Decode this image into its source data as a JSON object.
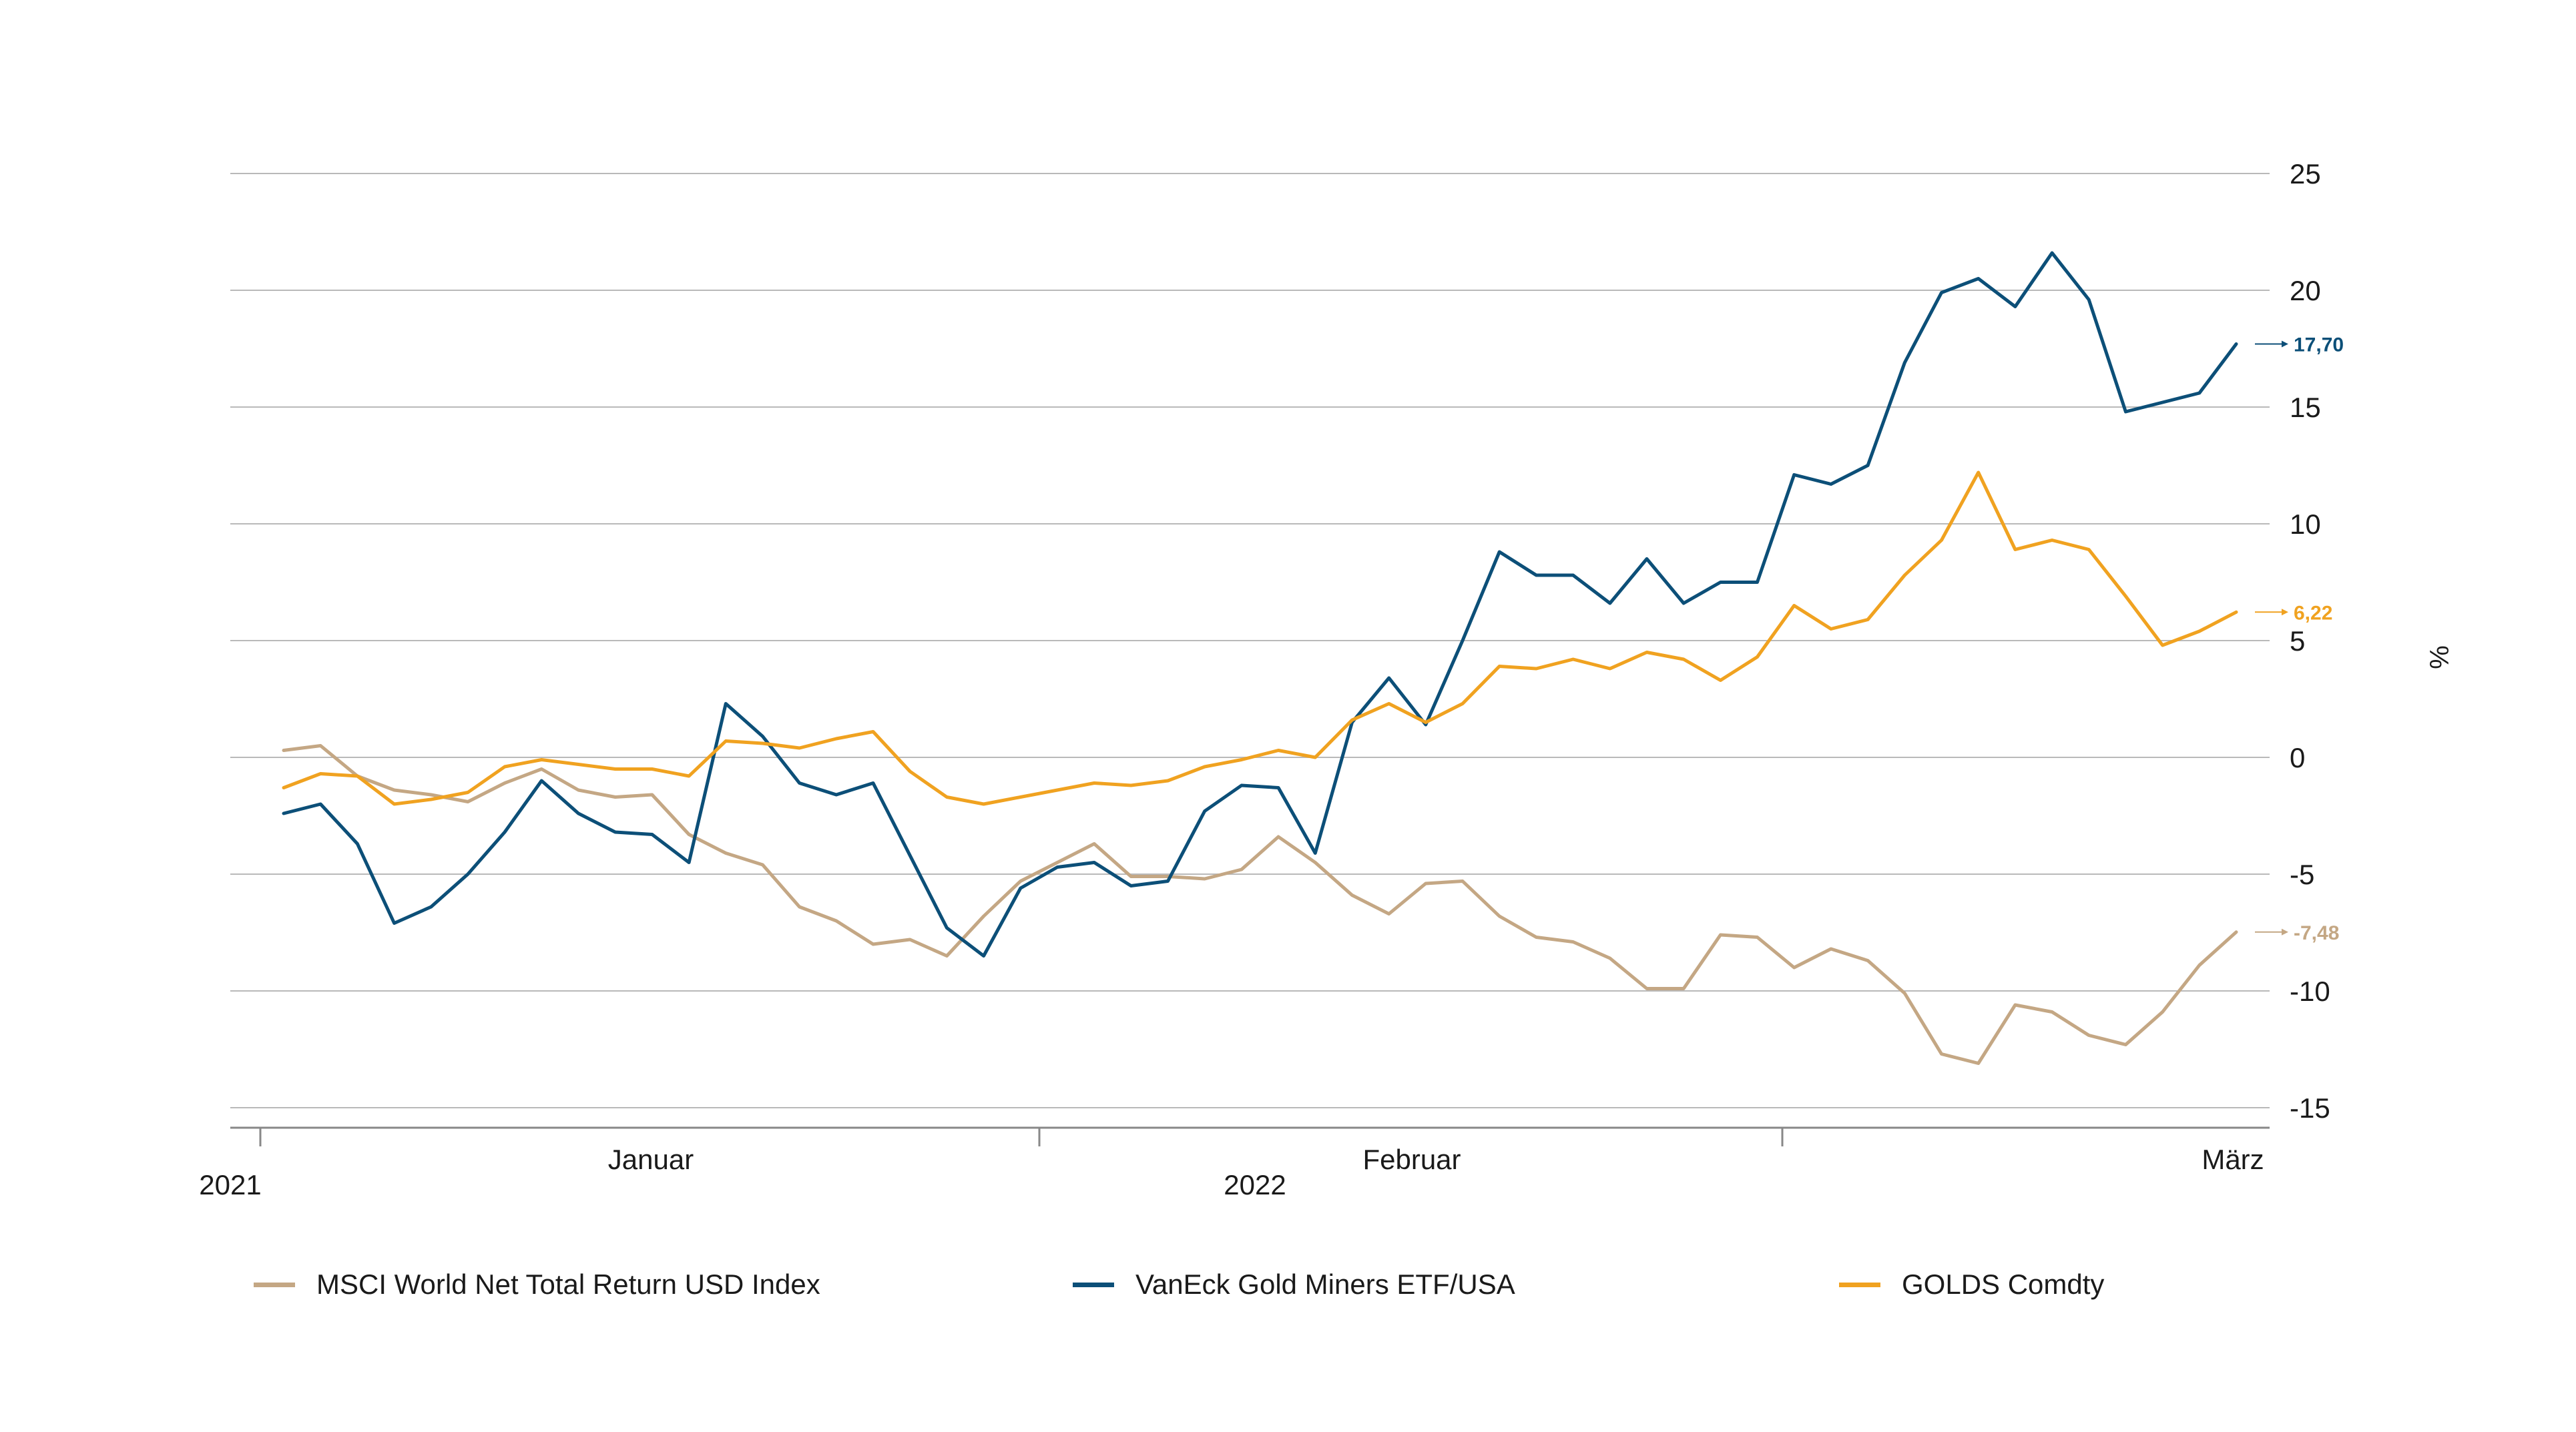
{
  "chart_data": {
    "type": "line",
    "ylabel": "%",
    "ylim": [
      -16,
      25
    ],
    "yticks": [
      25,
      20,
      15,
      10,
      5,
      0,
      -5,
      -10,
      -15
    ],
    "xticks": [
      {
        "label": "2021"
      },
      {
        "label": "Januar"
      },
      {
        "label": "2022"
      },
      {
        "label": "Februar"
      },
      {
        "label": "März"
      }
    ],
    "grid": true,
    "legend_position": "bottom",
    "n_points": 54,
    "series": [
      {
        "name": "MSCI World Net Total Return USD Index",
        "color": "#c4a784",
        "end_label": "-7,48",
        "values": [
          0.3,
          0.5,
          -0.8,
          -1.4,
          -1.6,
          -1.9,
          -1.1,
          -0.5,
          -1.4,
          -1.7,
          -1.6,
          -3.3,
          -4.1,
          -4.6,
          -6.4,
          -7.0,
          -8.0,
          -7.8,
          -8.5,
          -6.8,
          -5.3,
          -4.5,
          -3.7,
          -5.1,
          -5.1,
          -5.2,
          -4.8,
          -3.4,
          -4.5,
          -5.9,
          -6.7,
          -5.4,
          -5.3,
          -6.8,
          -7.7,
          -7.9,
          -8.6,
          -9.9,
          -9.9,
          -7.6,
          -7.7,
          -9.0,
          -8.2,
          -8.7,
          -10.1,
          -12.7,
          -13.1,
          -10.6,
          -10.9,
          -11.9,
          -12.3,
          -10.9,
          -8.9,
          -7.48
        ]
      },
      {
        "name": "VanEck Gold Miners ETF/USA",
        "color": "#0c4f78",
        "end_label": "17,70",
        "values": [
          -2.4,
          -2.0,
          -3.7,
          -7.1,
          -6.4,
          -5.0,
          -3.2,
          -1.0,
          -2.4,
          -3.2,
          -3.3,
          -4.5,
          2.3,
          0.9,
          -1.1,
          -1.6,
          -1.1,
          -4.2,
          -7.3,
          -8.5,
          -5.6,
          -4.7,
          -4.5,
          -5.5,
          -5.3,
          -2.3,
          -1.2,
          -1.3,
          -4.1,
          1.5,
          3.4,
          1.4,
          5.0,
          8.8,
          7.8,
          7.8,
          6.6,
          8.5,
          6.6,
          7.5,
          7.5,
          12.1,
          11.7,
          12.5,
          16.9,
          19.9,
          20.5,
          19.3,
          21.6,
          19.6,
          14.8,
          15.2,
          15.6,
          17.7
        ]
      },
      {
        "name": "GOLDS Comdty",
        "color": "#f0a220",
        "end_label": "6,22",
        "values": [
          -1.3,
          -0.7,
          -0.8,
          -2.0,
          -1.8,
          -1.5,
          -0.4,
          -0.1,
          -0.3,
          -0.5,
          -0.5,
          -0.8,
          0.7,
          0.6,
          0.4,
          0.8,
          1.1,
          -0.6,
          -1.7,
          -2.0,
          -1.7,
          -1.4,
          -1.1,
          -1.2,
          -1.0,
          -0.4,
          -0.1,
          0.3,
          0.0,
          1.6,
          2.3,
          1.5,
          2.3,
          3.9,
          3.8,
          4.2,
          3.8,
          4.5,
          4.2,
          3.3,
          4.3,
          6.5,
          5.5,
          5.9,
          7.8,
          9.3,
          12.2,
          8.9,
          9.3,
          8.9,
          6.9,
          4.8,
          5.4,
          6.22
        ]
      }
    ]
  },
  "colors": {
    "grid": "#b9b9b9",
    "axis": "#888888",
    "text": "#1a1a1a"
  }
}
